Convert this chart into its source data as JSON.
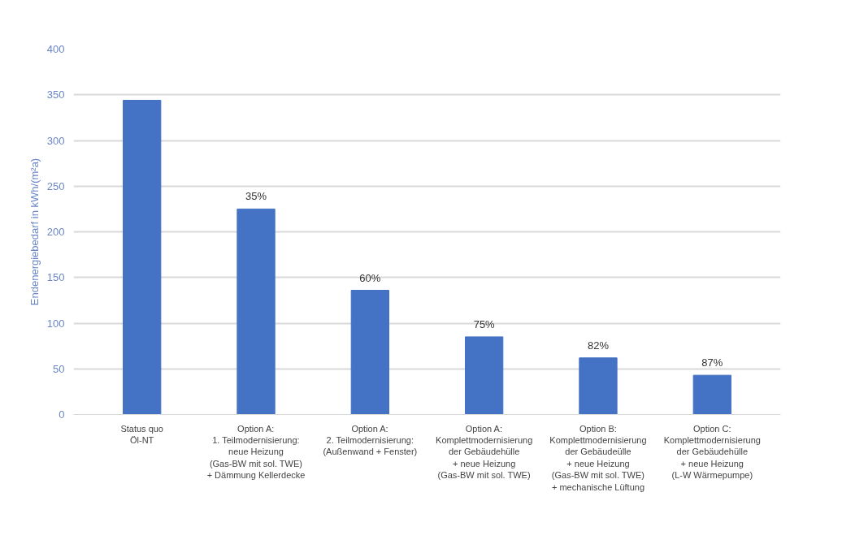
{
  "chart_data": {
    "type": "bar",
    "ylabel": "Endenergiebedarf in kWh/(m²a)",
    "categories": [
      "Status quo\nÖl-NT",
      "Option A:\n1. Teilmodernisierung:\nneue Heizung\n(Gas-BW mit sol. TWE)\n+ Dämmung Kellerdecke",
      "Option A:\n2. Teilmodernisierung:\n(Außenwand + Fenster)",
      "Option A:\nKomplettmodernisierung\nder Gebäudehülle\n+ neue Heizung\n(Gas-BW mit sol. TWE)",
      "Option B:\nKomplettmodernisierung\nder Gebäudeülle\n+ neue Heizung\n(Gas-BW mit sol. TWE)\n+ mechanische Lüftung",
      "Option C:\nKomplettmodernisierung\nder Gebäudehülle\n+ neue Heizung\n(L-W Wärmepumpe)"
    ],
    "values": [
      344,
      225,
      136,
      85,
      62,
      43
    ],
    "annotations": [
      {
        "text": "35%",
        "x": "Option A:\n1. Teilmodernisierung:\nneue Heizung\n(Gas-BW mit sol. TWE)\n+ Dämmung Kellerdecke",
        "y": 225
      },
      {
        "text": "60%",
        "x": "Option A:\n2. Teilmodernisierung:\n(Außenwand + Fenster)",
        "y": 136
      },
      {
        "text": "75%",
        "x": "Option A:\nKomplettmodernisierung\nder Gebäudehülle\n+ neue Heizung\n(Gas-BW mit sol. TWE)",
        "y": 85
      },
      {
        "text": "82%",
        "x": "Option B:\nKomplettmodernisierung\nder Gebäudeülle\n+ neue Heizung\n(Gas-BW mit sol. TWE)\n+ mechanische Lüftung",
        "y": 62
      },
      {
        "text": "87%",
        "x": "Option C:\nKomplettmodernisierung\nder Gebäudehülle\n+ neue Heizung\n(L-W Wärmepumpe)",
        "y": 43
      }
    ],
    "color": "#4472c4",
    "ylim": [
      0,
      400
    ],
    "yticks": [
      0,
      50,
      100,
      150,
      200,
      250,
      300,
      350,
      400
    ],
    "grid": "y"
  }
}
